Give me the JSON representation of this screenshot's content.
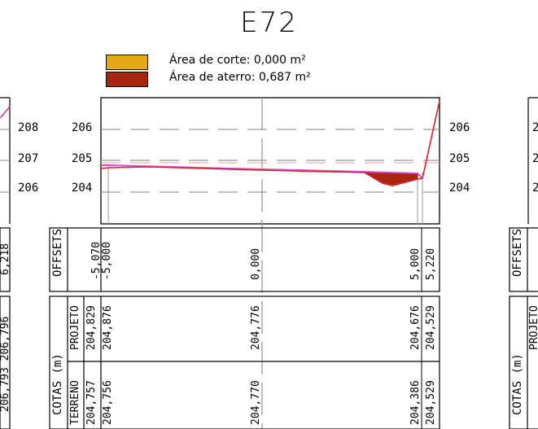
{
  "title": "E72",
  "legend": {
    "corte_label": "Área de corte: 0,000 m²",
    "aterro_label": "Área de aterro: 0,687 m²",
    "corte_color": "#e6a817",
    "aterro_color": "#a8250f"
  },
  "left_partial": {
    "elevations": [
      "208",
      "207",
      "206"
    ],
    "offset_value": "6,218",
    "cotas_value": "206,793 206,796"
  },
  "main": {
    "elevations_left": [
      "206",
      "205",
      "204"
    ],
    "elevations_right": [
      "206",
      "205",
      "204"
    ],
    "offsets_header": "OFFSETS",
    "offsets": [
      "-5,070",
      "-5,000",
      "0,000",
      "5,000",
      "5,220"
    ],
    "cotas_header": "COTAS (m)",
    "projeto_label": "PROJETO",
    "terreno_label": "TERRENO",
    "projeto_values": [
      "204,829",
      "204,876",
      "204,776",
      "204,676",
      "204,529"
    ],
    "terreno_values": [
      "204,757",
      "204,756",
      "204,770",
      "204,386",
      "204,529"
    ]
  },
  "right_partial": {
    "elevations": [
      "2",
      "2",
      "2"
    ],
    "offsets_header": "OFFSETS",
    "cotas_header": "COTAS (m)",
    "projeto_label": "PROJETO"
  },
  "chart_data": {
    "type": "line",
    "title": "E72",
    "xlabel": "OFFSETS",
    "ylabel": "COTAS (m)",
    "ylim": [
      203.9,
      206.6
    ],
    "series": [
      {
        "name": "PROJETO",
        "x": [
          -5.07,
          -5.0,
          0.0,
          5.0,
          5.22
        ],
        "y": [
          204.829,
          204.876,
          204.776,
          204.676,
          204.529
        ]
      },
      {
        "name": "TERRENO",
        "x": [
          -5.07,
          -5.0,
          0.0,
          5.0,
          5.22
        ],
        "y": [
          204.757,
          204.756,
          204.77,
          204.386,
          204.529
        ]
      }
    ]
  }
}
